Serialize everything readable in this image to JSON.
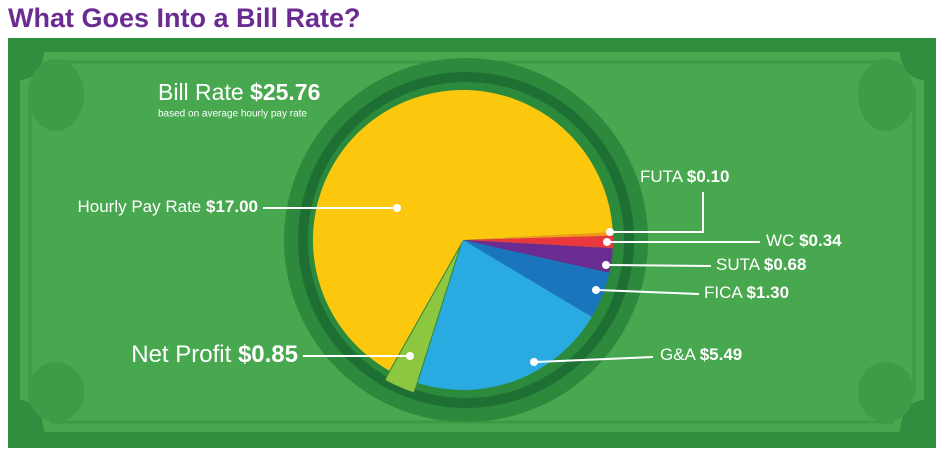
{
  "chart_data": {
    "type": "pie",
    "title": "What Goes Into a Bill Rate?",
    "total": {
      "label": "Bill Rate",
      "value": 25.76,
      "value_label": "$25.76",
      "note": "based on average hourly pay rate"
    },
    "categories": [
      "FUTA",
      "WC",
      "SUTA",
      "FICA",
      "G&A",
      "Net Profit",
      "Hourly Pay Rate"
    ],
    "values": [
      0.1,
      0.34,
      0.68,
      1.3,
      5.49,
      0.85,
      17.0
    ],
    "value_labels": [
      "$0.10",
      "$0.34",
      "$0.68",
      "$1.30",
      "$5.49",
      "$0.85",
      "$17.00"
    ],
    "colors": [
      "#f7941d",
      "#e8383d",
      "#6a2c91",
      "#1b75bc",
      "#29abe2",
      "#8dc63f",
      "#fcc80d"
    ]
  }
}
